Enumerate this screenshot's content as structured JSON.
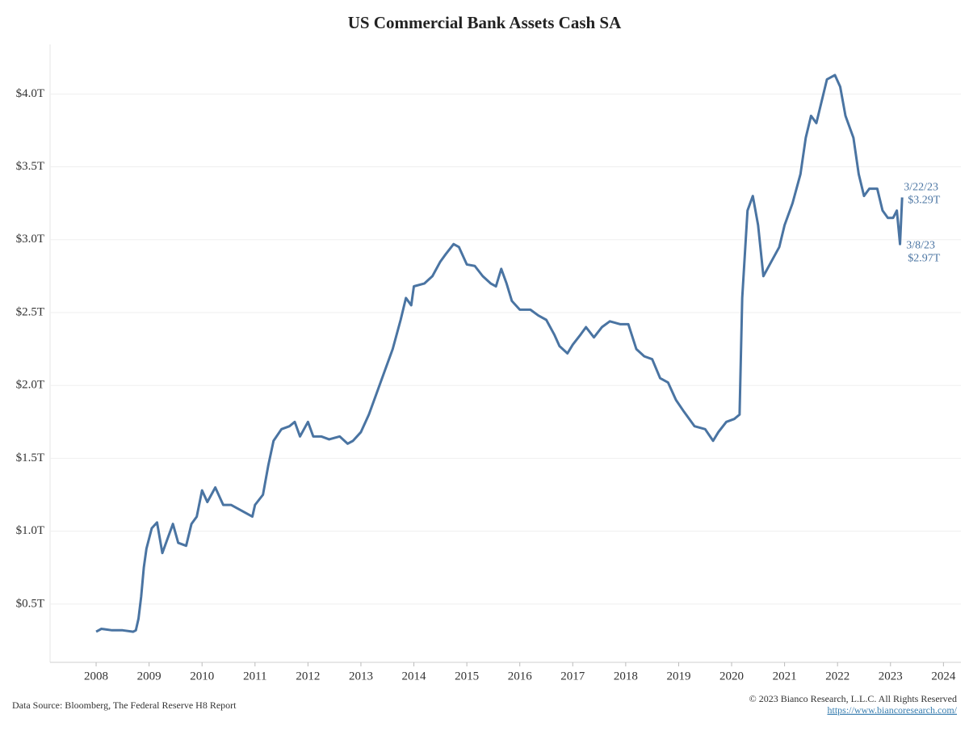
{
  "chart_data": {
    "type": "line",
    "title": "US Commercial Bank Assets Cash SA",
    "source": "Data Source: Bloomberg, The Federal Reserve H8 Report",
    "copyright": "© 2023 Bianco Research, L.L.C. All Rights Reserved",
    "url": "https://www.biancoresearch.com/",
    "annotations": [
      "3/22/23",
      "$3.29T",
      "3/8/23",
      "$2.97T"
    ],
    "xlim": [
      2007.13,
      2024.33
    ],
    "xticks": [
      2008,
      2009,
      2010,
      2011,
      2012,
      2013,
      2014,
      2015,
      2016,
      2017,
      2018,
      2019,
      2020,
      2021,
      2022,
      2023,
      2024
    ],
    "ylim": [
      0.1,
      4.34
    ],
    "yticks": [
      {
        "value": 0.5,
        "label": "$0.5T"
      },
      {
        "value": 1.0,
        "label": "$1.0T"
      },
      {
        "value": 1.5,
        "label": "$1.5T"
      },
      {
        "value": 2.0,
        "label": "$2.0T"
      },
      {
        "value": 2.5,
        "label": "$2.5T"
      },
      {
        "value": 3.0,
        "label": "$3.0T"
      },
      {
        "value": 3.5,
        "label": "$3.5T"
      },
      {
        "value": 4.0,
        "label": "$4.0T"
      }
    ],
    "grid": true,
    "x": [
      2008.0,
      2008.1,
      2008.3,
      2008.5,
      2008.7,
      2008.75,
      2008.8,
      2008.85,
      2008.9,
      2008.95,
      2009.05,
      2009.15,
      2009.25,
      2009.35,
      2009.45,
      2009.55,
      2009.7,
      2009.8,
      2009.9,
      2010.0,
      2010.1,
      2010.25,
      2010.4,
      2010.55,
      2010.7,
      2010.85,
      2010.95,
      2011.0,
      2011.15,
      2011.25,
      2011.35,
      2011.5,
      2011.65,
      2011.75,
      2011.85,
      2012.0,
      2012.1,
      2012.25,
      2012.4,
      2012.6,
      2012.75,
      2012.85,
      2013.0,
      2013.15,
      2013.3,
      2013.45,
      2013.6,
      2013.75,
      2013.85,
      2013.95,
      2014.0,
      2014.2,
      2014.35,
      2014.5,
      2014.6,
      2014.75,
      2014.85,
      2015.0,
      2015.15,
      2015.3,
      2015.45,
      2015.55,
      2015.65,
      2015.75,
      2015.85,
      2016.0,
      2016.2,
      2016.35,
      2016.5,
      2016.65,
      2016.75,
      2016.9,
      2017.0,
      2017.15,
      2017.25,
      2017.4,
      2017.55,
      2017.7,
      2017.9,
      2018.05,
      2018.2,
      2018.35,
      2018.5,
      2018.65,
      2018.8,
      2018.95,
      2019.1,
      2019.3,
      2019.5,
      2019.65,
      2019.75,
      2019.9,
      2020.05,
      2020.15,
      2020.2,
      2020.3,
      2020.4,
      2020.5,
      2020.6,
      2020.75,
      2020.9,
      2021.0,
      2021.15,
      2021.3,
      2021.4,
      2021.5,
      2021.6,
      2021.7,
      2021.8,
      2021.95,
      2022.05,
      2022.15,
      2022.3,
      2022.4,
      2022.5,
      2022.6,
      2022.75,
      2022.85,
      2022.95,
      2023.05,
      2023.12,
      2023.18,
      2023.22
    ],
    "series": [
      {
        "name": "US Commercial Bank Assets Cash SA",
        "color": "#4a74a2",
        "values": [
          0.31,
          0.33,
          0.32,
          0.32,
          0.31,
          0.32,
          0.4,
          0.55,
          0.75,
          0.88,
          1.02,
          1.06,
          0.85,
          0.95,
          1.05,
          0.92,
          0.9,
          1.05,
          1.1,
          1.28,
          1.2,
          1.3,
          1.18,
          1.18,
          1.15,
          1.12,
          1.1,
          1.18,
          1.25,
          1.45,
          1.62,
          1.7,
          1.72,
          1.75,
          1.65,
          1.75,
          1.65,
          1.65,
          1.63,
          1.65,
          1.6,
          1.62,
          1.68,
          1.8,
          1.95,
          2.1,
          2.25,
          2.45,
          2.6,
          2.55,
          2.68,
          2.7,
          2.75,
          2.85,
          2.9,
          2.97,
          2.95,
          2.83,
          2.82,
          2.75,
          2.7,
          2.68,
          2.8,
          2.7,
          2.58,
          2.52,
          2.52,
          2.48,
          2.45,
          2.35,
          2.27,
          2.22,
          2.28,
          2.35,
          2.4,
          2.33,
          2.4,
          2.44,
          2.42,
          2.42,
          2.25,
          2.2,
          2.18,
          2.05,
          2.02,
          1.9,
          1.82,
          1.72,
          1.7,
          1.62,
          1.68,
          1.75,
          1.77,
          1.8,
          2.6,
          3.2,
          3.3,
          3.1,
          2.75,
          2.85,
          2.95,
          3.1,
          3.25,
          3.45,
          3.7,
          3.85,
          3.8,
          3.95,
          4.1,
          4.13,
          4.05,
          3.85,
          3.7,
          3.45,
          3.3,
          3.35,
          3.35,
          3.2,
          3.15,
          3.15,
          3.2,
          2.97,
          3.29
        ]
      }
    ]
  }
}
